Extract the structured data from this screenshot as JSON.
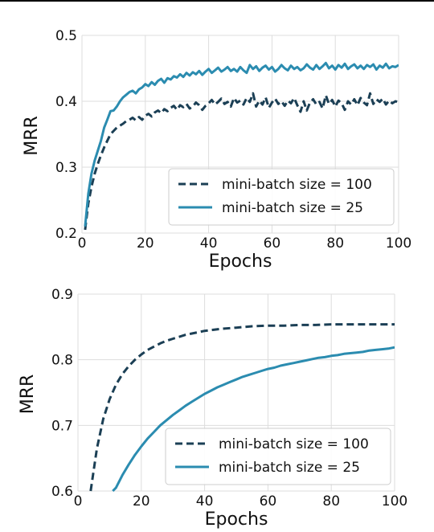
{
  "chart_data": [
    {
      "type": "line",
      "xlabel": "Epochs",
      "ylabel": "MRR",
      "xlim": [
        0,
        100
      ],
      "ylim": [
        0.2,
        0.5
      ],
      "xticks": [
        0,
        20,
        40,
        60,
        80,
        100
      ],
      "yticks": [
        0.2,
        0.3,
        0.4,
        0.5
      ],
      "xtick_labels": [
        "0",
        "20",
        "40",
        "60",
        "80",
        "100"
      ],
      "ytick_labels": [
        "0.2",
        "0.3",
        "0.4",
        "0.5"
      ],
      "grid": true,
      "legend_position": "bottom-right",
      "series": [
        {
          "name": "mini-batch size = 100",
          "color": "#1b3f55",
          "style": "dashed",
          "x": [
            1,
            2,
            3,
            4,
            5,
            6,
            7,
            8,
            9,
            10,
            11,
            12,
            13,
            14,
            15,
            16,
            17,
            18,
            19,
            20,
            21,
            22,
            23,
            24,
            25,
            26,
            27,
            28,
            29,
            30,
            31,
            32,
            33,
            34,
            35,
            36,
            37,
            38,
            39,
            40,
            41,
            42,
            43,
            44,
            45,
            46,
            47,
            48,
            49,
            50,
            51,
            52,
            53,
            54,
            55,
            56,
            57,
            58,
            59,
            60,
            61,
            62,
            63,
            64,
            65,
            66,
            67,
            68,
            69,
            70,
            71,
            72,
            73,
            74,
            75,
            76,
            77,
            78,
            79,
            80,
            81,
            82,
            83,
            84,
            85,
            86,
            87,
            88,
            89,
            90,
            91,
            92,
            93,
            94,
            95,
            96,
            97,
            98,
            99,
            100
          ],
          "values": [
            0.205,
            0.245,
            0.27,
            0.29,
            0.305,
            0.318,
            0.33,
            0.34,
            0.35,
            0.355,
            0.36,
            0.363,
            0.366,
            0.37,
            0.372,
            0.375,
            0.371,
            0.376,
            0.372,
            0.378,
            0.381,
            0.377,
            0.383,
            0.386,
            0.382,
            0.388,
            0.385,
            0.39,
            0.393,
            0.387,
            0.394,
            0.391,
            0.396,
            0.389,
            0.392,
            0.398,
            0.394,
            0.387,
            0.393,
            0.397,
            0.402,
            0.395,
            0.399,
            0.404,
            0.396,
            0.399,
            0.392,
            0.405,
            0.398,
            0.401,
            0.395,
            0.405,
            0.399,
            0.412,
            0.392,
            0.401,
            0.395,
            0.406,
            0.39,
            0.398,
            0.404,
            0.396,
            0.4,
            0.393,
            0.401,
            0.397,
            0.405,
            0.394,
            0.384,
            0.4,
            0.386,
            0.398,
            0.403,
            0.395,
            0.399,
            0.389,
            0.409,
            0.396,
            0.402,
            0.392,
            0.401,
            0.397,
            0.387,
            0.4,
            0.395,
            0.403,
            0.394,
            0.405,
            0.398,
            0.394,
            0.412,
            0.396,
            0.403,
            0.399,
            0.404,
            0.395,
            0.401,
            0.397,
            0.4,
            0.398
          ]
        },
        {
          "name": "mini-batch size = 25",
          "color": "#2b8cb0",
          "style": "solid",
          "x": [
            1,
            2,
            3,
            4,
            5,
            6,
            7,
            8,
            9,
            10,
            11,
            12,
            13,
            14,
            15,
            16,
            17,
            18,
            19,
            20,
            21,
            22,
            23,
            24,
            25,
            26,
            27,
            28,
            29,
            30,
            31,
            32,
            33,
            34,
            35,
            36,
            37,
            38,
            39,
            40,
            41,
            42,
            43,
            44,
            45,
            46,
            47,
            48,
            49,
            50,
            51,
            52,
            53,
            54,
            55,
            56,
            57,
            58,
            59,
            60,
            61,
            62,
            63,
            64,
            65,
            66,
            67,
            68,
            69,
            70,
            71,
            72,
            73,
            74,
            75,
            76,
            77,
            78,
            79,
            80,
            81,
            82,
            83,
            84,
            85,
            86,
            87,
            88,
            89,
            90,
            91,
            92,
            93,
            94,
            95,
            96,
            97,
            98,
            99,
            100
          ],
          "values": [
            0.21,
            0.26,
            0.29,
            0.31,
            0.325,
            0.34,
            0.36,
            0.372,
            0.385,
            0.386,
            0.392,
            0.4,
            0.406,
            0.41,
            0.414,
            0.416,
            0.412,
            0.418,
            0.421,
            0.426,
            0.423,
            0.429,
            0.425,
            0.431,
            0.434,
            0.428,
            0.435,
            0.433,
            0.438,
            0.436,
            0.441,
            0.437,
            0.443,
            0.439,
            0.444,
            0.441,
            0.446,
            0.44,
            0.445,
            0.449,
            0.443,
            0.447,
            0.451,
            0.445,
            0.448,
            0.452,
            0.446,
            0.449,
            0.445,
            0.452,
            0.447,
            0.443,
            0.455,
            0.449,
            0.453,
            0.446,
            0.451,
            0.454,
            0.448,
            0.452,
            0.445,
            0.449,
            0.455,
            0.45,
            0.447,
            0.454,
            0.449,
            0.452,
            0.447,
            0.45,
            0.456,
            0.451,
            0.448,
            0.455,
            0.449,
            0.453,
            0.458,
            0.45,
            0.454,
            0.448,
            0.455,
            0.451,
            0.457,
            0.449,
            0.453,
            0.456,
            0.45,
            0.454,
            0.449,
            0.455,
            0.452,
            0.456,
            0.448,
            0.454,
            0.451,
            0.457,
            0.45,
            0.453,
            0.452,
            0.455
          ]
        }
      ]
    },
    {
      "type": "line",
      "xlabel": "Epochs",
      "ylabel": "MRR",
      "xlim": [
        0,
        100
      ],
      "ylim": [
        0.6,
        0.9
      ],
      "xticks": [
        0,
        20,
        40,
        60,
        80,
        100
      ],
      "yticks": [
        0.6,
        0.7,
        0.8,
        0.9
      ],
      "xtick_labels": [
        "0",
        "20",
        "40",
        "60",
        "80",
        "100"
      ],
      "ytick_labels": [
        "0.6",
        "0.7",
        "0.8",
        "0.9"
      ],
      "grid": true,
      "legend_position": "bottom-right",
      "series": [
        {
          "name": "mini-batch size = 100",
          "color": "#1b3f55",
          "style": "dashed",
          "x": [
            4,
            6,
            8,
            10,
            12,
            14,
            16,
            18,
            20,
            22,
            24,
            26,
            28,
            30,
            32,
            34,
            36,
            38,
            40,
            45,
            50,
            55,
            60,
            65,
            70,
            75,
            80,
            85,
            90,
            95,
            100
          ],
          "values": [
            0.6,
            0.665,
            0.71,
            0.74,
            0.762,
            0.778,
            0.79,
            0.8,
            0.808,
            0.815,
            0.82,
            0.825,
            0.829,
            0.832,
            0.835,
            0.838,
            0.84,
            0.842,
            0.844,
            0.847,
            0.849,
            0.851,
            0.852,
            0.852,
            0.853,
            0.853,
            0.854,
            0.854,
            0.854,
            0.854,
            0.854
          ]
        },
        {
          "name": "mini-batch size = 25",
          "color": "#2b8cb0",
          "style": "solid",
          "x": [
            11,
            12,
            14,
            16,
            18,
            20,
            22,
            24,
            26,
            28,
            30,
            32,
            34,
            36,
            38,
            40,
            42,
            44,
            46,
            48,
            50,
            52,
            54,
            56,
            58,
            60,
            62,
            64,
            66,
            68,
            70,
            72,
            74,
            76,
            78,
            80,
            82,
            84,
            86,
            88,
            90,
            92,
            94,
            96,
            98,
            100
          ],
          "values": [
            0.6,
            0.605,
            0.624,
            0.64,
            0.655,
            0.668,
            0.68,
            0.69,
            0.7,
            0.708,
            0.716,
            0.723,
            0.73,
            0.736,
            0.742,
            0.748,
            0.753,
            0.758,
            0.762,
            0.766,
            0.77,
            0.774,
            0.777,
            0.78,
            0.783,
            0.786,
            0.788,
            0.791,
            0.793,
            0.795,
            0.797,
            0.799,
            0.801,
            0.803,
            0.804,
            0.806,
            0.807,
            0.809,
            0.81,
            0.811,
            0.812,
            0.814,
            0.815,
            0.816,
            0.817,
            0.819
          ]
        }
      ]
    }
  ]
}
